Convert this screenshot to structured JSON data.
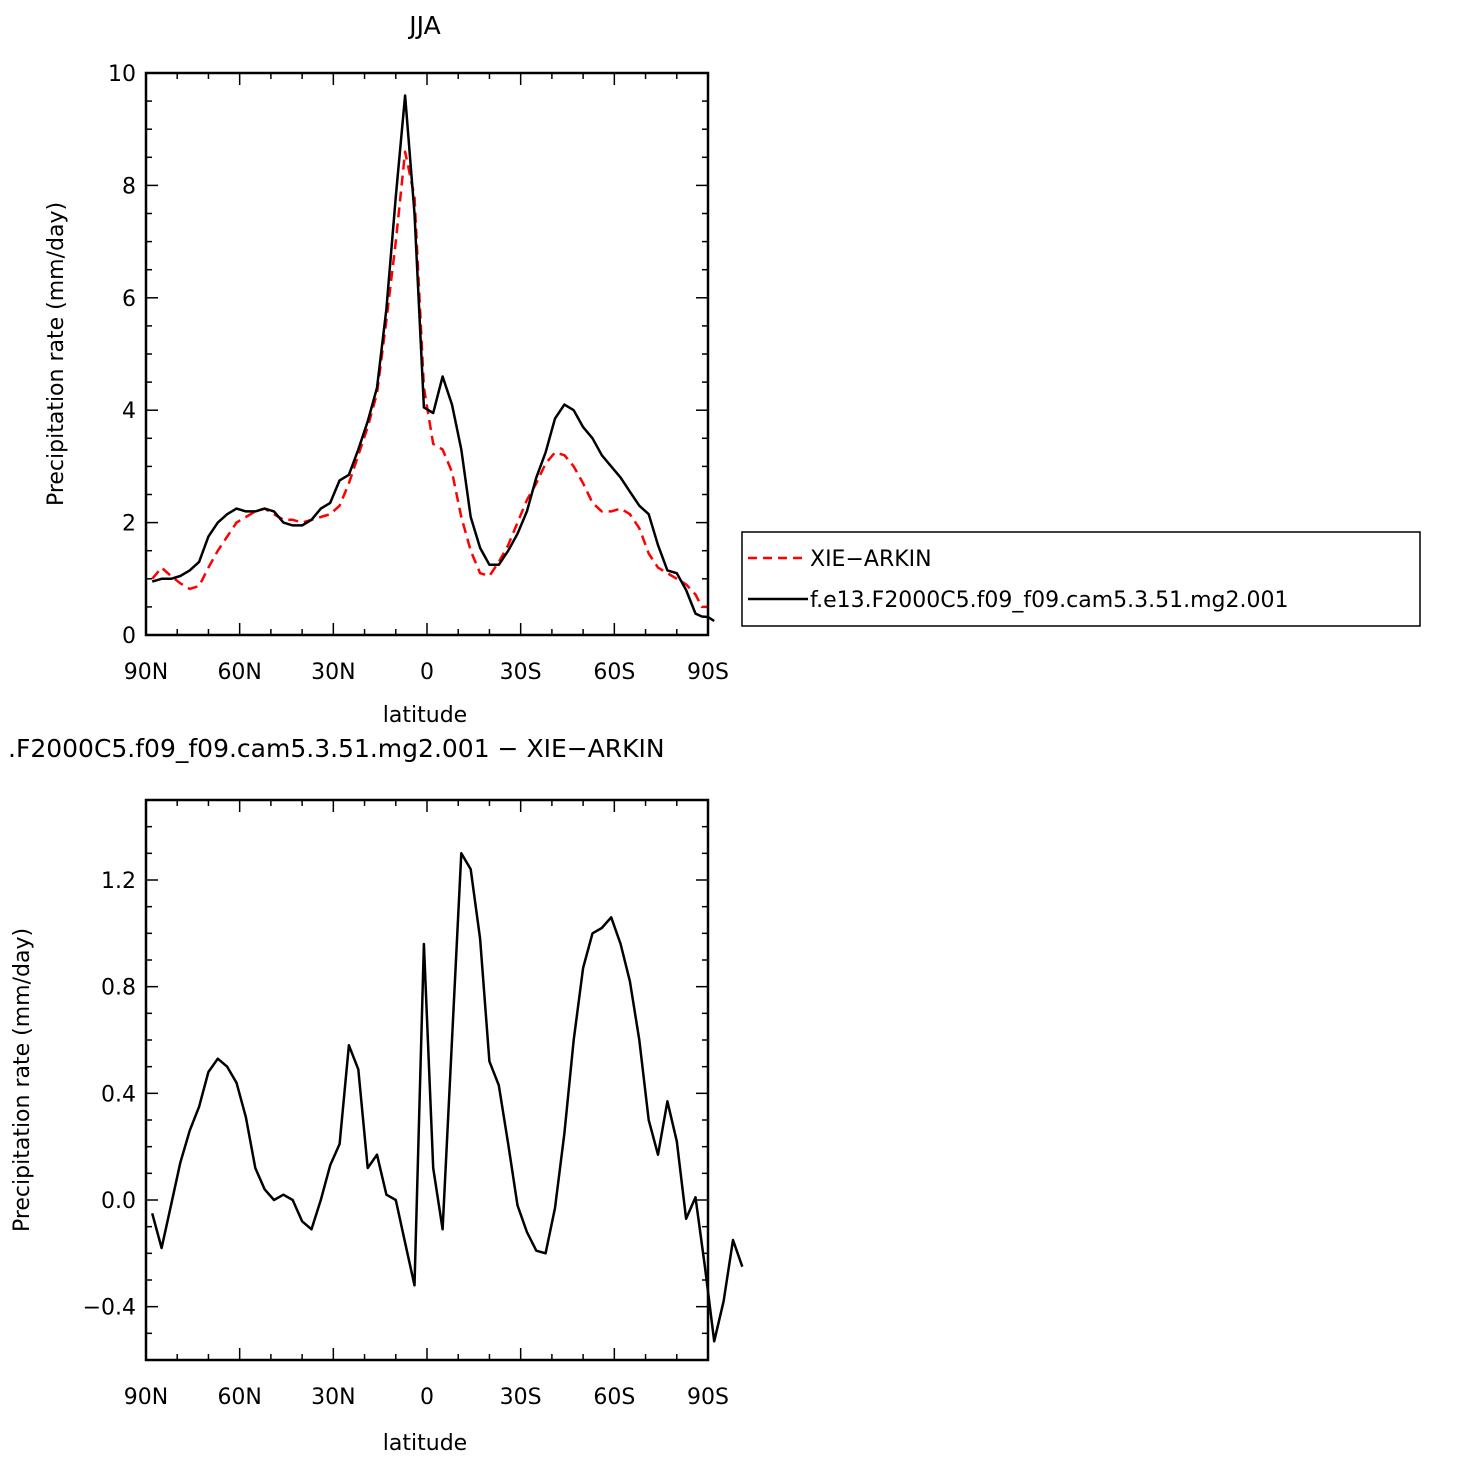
{
  "chart_data": [
    {
      "type": "line",
      "title": "JJA",
      "xlabel": "latitude",
      "ylabel": "Precipitation rate (mm/day)",
      "xlim": [
        90,
        -90
      ],
      "ylim": [
        0,
        10
      ],
      "x_ticks": [
        {
          "v": 90,
          "label": "90N"
        },
        {
          "v": 60,
          "label": "60N"
        },
        {
          "v": 30,
          "label": "30N"
        },
        {
          "v": 0,
          "label": "0"
        },
        {
          "v": -30,
          "label": "30S"
        },
        {
          "v": -60,
          "label": "60S"
        },
        {
          "v": -90,
          "label": "90S"
        }
      ],
      "y_ticks": [
        {
          "v": 0,
          "label": "0"
        },
        {
          "v": 2,
          "label": "2"
        },
        {
          "v": 4,
          "label": "4"
        },
        {
          "v": 6,
          "label": "6"
        },
        {
          "v": 8,
          "label": "8"
        },
        {
          "v": 10,
          "label": "10"
        }
      ],
      "legend_position": "right",
      "series": [
        {
          "name": "XIE−ARKIN",
          "color": "#ff0000",
          "dash": "dashed",
          "points": [
            [
              88,
              1.0
            ],
            [
              85,
              1.2
            ],
            [
              82,
              1.05
            ],
            [
              79,
              0.92
            ],
            [
              76,
              0.82
            ],
            [
              73,
              0.87
            ],
            [
              70,
              1.2
            ],
            [
              67,
              1.5
            ],
            [
              64,
              1.75
            ],
            [
              61,
              2.0
            ],
            [
              58,
              2.1
            ],
            [
              55,
              2.2
            ],
            [
              52,
              2.25
            ],
            [
              49,
              2.15
            ],
            [
              46,
              2.05
            ],
            [
              43,
              2.05
            ],
            [
              40,
              2.0
            ],
            [
              37,
              2.05
            ],
            [
              34,
              2.1
            ],
            [
              31,
              2.15
            ],
            [
              28,
              2.3
            ],
            [
              25,
              2.7
            ],
            [
              22,
              3.2
            ],
            [
              19,
              3.7
            ],
            [
              16,
              4.3
            ],
            [
              13,
              5.6
            ],
            [
              10,
              7.0
            ],
            [
              7,
              8.6
            ],
            [
              4,
              7.8
            ],
            [
              1,
              4.4
            ],
            [
              -2,
              3.4
            ],
            [
              -5,
              3.3
            ],
            [
              -8,
              2.9
            ],
            [
              -11,
              2.1
            ],
            [
              -14,
              1.5
            ],
            [
              -17,
              1.1
            ],
            [
              -20,
              1.05
            ],
            [
              -23,
              1.3
            ],
            [
              -26,
              1.6
            ],
            [
              -29,
              2.0
            ],
            [
              -32,
              2.4
            ],
            [
              -35,
              2.7
            ],
            [
              -38,
              3.05
            ],
            [
              -41,
              3.25
            ],
            [
              -44,
              3.2
            ],
            [
              -47,
              3.0
            ],
            [
              -50,
              2.7
            ],
            [
              -53,
              2.35
            ],
            [
              -56,
              2.2
            ],
            [
              -59,
              2.2
            ],
            [
              -62,
              2.25
            ],
            [
              -65,
              2.15
            ],
            [
              -68,
              1.9
            ],
            [
              -71,
              1.45
            ],
            [
              -74,
              1.2
            ],
            [
              -77,
              1.1
            ],
            [
              -80,
              1.0
            ],
            [
              -83,
              0.9
            ],
            [
              -86,
              0.72
            ],
            [
              -88,
              0.5
            ],
            [
              -90,
              0.5
            ]
          ]
        },
        {
          "name": "f.e13.F2000C5.f09_f09.cam5.3.51.mg2.001",
          "color": "#000000",
          "dash": "solid",
          "points": [
            [
              88,
              0.95
            ],
            [
              85,
              1.0
            ],
            [
              82,
              1.0
            ],
            [
              79,
              1.05
            ],
            [
              76,
              1.15
            ],
            [
              73,
              1.3
            ],
            [
              70,
              1.75
            ],
            [
              67,
              2.0
            ],
            [
              64,
              2.15
            ],
            [
              61,
              2.25
            ],
            [
              58,
              2.2
            ],
            [
              55,
              2.2
            ],
            [
              52,
              2.25
            ],
            [
              49,
              2.2
            ],
            [
              46,
              2.0
            ],
            [
              43,
              1.95
            ],
            [
              40,
              1.95
            ],
            [
              37,
              2.05
            ],
            [
              34,
              2.25
            ],
            [
              31,
              2.35
            ],
            [
              28,
              2.75
            ],
            [
              25,
              2.85
            ],
            [
              22,
              3.3
            ],
            [
              19,
              3.8
            ],
            [
              16,
              4.4
            ],
            [
              13,
              5.8
            ],
            [
              10,
              7.8
            ],
            [
              7,
              9.6
            ],
            [
              4,
              7.5
            ],
            [
              1,
              4.05
            ],
            [
              -2,
              3.95
            ],
            [
              -5,
              4.6
            ],
            [
              -8,
              4.1
            ],
            [
              -11,
              3.3
            ],
            [
              -14,
              2.1
            ],
            [
              -17,
              1.55
            ],
            [
              -20,
              1.25
            ],
            [
              -23,
              1.25
            ],
            [
              -26,
              1.5
            ],
            [
              -29,
              1.8
            ],
            [
              -32,
              2.2
            ],
            [
              -35,
              2.8
            ],
            [
              -38,
              3.25
            ],
            [
              -41,
              3.85
            ],
            [
              -44,
              4.1
            ],
            [
              -47,
              4.0
            ],
            [
              -50,
              3.7
            ],
            [
              -53,
              3.5
            ],
            [
              -56,
              3.2
            ],
            [
              -59,
              3.0
            ],
            [
              -62,
              2.8
            ],
            [
              -65,
              2.55
            ],
            [
              -68,
              2.3
            ],
            [
              -71,
              2.15
            ],
            [
              -74,
              1.6
            ],
            [
              -77,
              1.15
            ],
            [
              -80,
              1.1
            ],
            [
              -83,
              0.8
            ],
            [
              -86,
              0.38
            ],
            [
              -88,
              0.33
            ],
            [
              -90,
              0.32
            ],
            [
              -92,
              0.25
            ]
          ]
        }
      ]
    },
    {
      "type": "line",
      "title": ".F2000C5.f09_f09.cam5.3.51.mg2.001  −  XIE−ARKIN",
      "xlabel": "latitude",
      "ylabel": "Precipitation rate (mm/day)",
      "xlim": [
        90,
        -90
      ],
      "ylim": [
        -0.6,
        1.5
      ],
      "x_ticks": [
        {
          "v": 90,
          "label": "90N"
        },
        {
          "v": 60,
          "label": "60N"
        },
        {
          "v": 30,
          "label": "30N"
        },
        {
          "v": 0,
          "label": "0"
        },
        {
          "v": -30,
          "label": "30S"
        },
        {
          "v": -60,
          "label": "60S"
        },
        {
          "v": -90,
          "label": "90S"
        }
      ],
      "y_ticks": [
        {
          "v": -0.4,
          "label": "−0.4"
        },
        {
          "v": 0,
          "label": "0.0"
        },
        {
          "v": 0.4,
          "label": "0.4"
        },
        {
          "v": 0.8,
          "label": "0.8"
        },
        {
          "v": 1.2,
          "label": "1.2"
        }
      ],
      "series": [
        {
          "color": "#000000",
          "dash": "solid",
          "points": [
            [
              88,
              -0.05
            ],
            [
              85,
              -0.18
            ],
            [
              82,
              -0.02
            ],
            [
              79,
              0.14
            ],
            [
              76,
              0.26
            ],
            [
              73,
              0.35
            ],
            [
              70,
              0.48
            ],
            [
              67,
              0.53
            ],
            [
              64,
              0.5
            ],
            [
              61,
              0.44
            ],
            [
              58,
              0.31
            ],
            [
              55,
              0.12
            ],
            [
              52,
              0.04
            ],
            [
              49,
              0.0
            ],
            [
              46,
              0.02
            ],
            [
              43,
              0.0
            ],
            [
              40,
              -0.08
            ],
            [
              37,
              -0.11
            ],
            [
              34,
              0.0
            ],
            [
              31,
              0.13
            ],
            [
              28,
              0.21
            ],
            [
              25,
              0.58
            ],
            [
              22,
              0.49
            ],
            [
              19,
              0.12
            ],
            [
              16,
              0.17
            ],
            [
              13,
              0.02
            ],
            [
              10,
              0.0
            ],
            [
              7,
              -0.16
            ],
            [
              4,
              -0.32
            ],
            [
              1,
              0.96
            ],
            [
              -2,
              0.12
            ],
            [
              -5,
              -0.11
            ],
            [
              -8,
              0.6
            ],
            [
              -11,
              1.3
            ],
            [
              -14,
              1.24
            ],
            [
              -17,
              0.98
            ],
            [
              -20,
              0.52
            ],
            [
              -23,
              0.43
            ],
            [
              -26,
              0.21
            ],
            [
              -29,
              -0.02
            ],
            [
              -32,
              -0.12
            ],
            [
              -35,
              -0.19
            ],
            [
              -38,
              -0.2
            ],
            [
              -41,
              -0.03
            ],
            [
              -44,
              0.25
            ],
            [
              -47,
              0.6
            ],
            [
              -50,
              0.87
            ],
            [
              -53,
              1.0
            ],
            [
              -56,
              1.02
            ],
            [
              -59,
              1.06
            ],
            [
              -62,
              0.96
            ],
            [
              -65,
              0.82
            ],
            [
              -68,
              0.6
            ],
            [
              -71,
              0.3
            ],
            [
              -74,
              0.17
            ],
            [
              -77,
              0.37
            ],
            [
              -80,
              0.22
            ],
            [
              -83,
              -0.07
            ],
            [
              -86,
              0.01
            ],
            [
              -89,
              -0.25
            ],
            [
              -92,
              -0.53
            ],
            [
              -95,
              -0.38
            ],
            [
              -98,
              -0.15
            ],
            [
              -101,
              -0.25
            ]
          ]
        }
      ]
    }
  ]
}
